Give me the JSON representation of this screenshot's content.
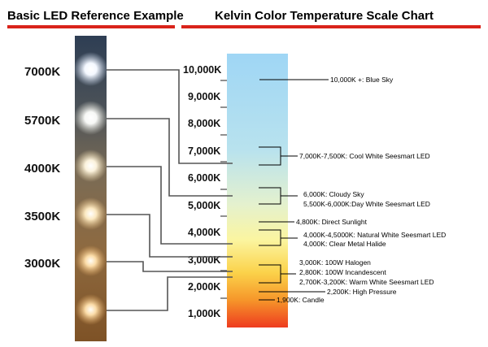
{
  "headings": {
    "left": "Basic LED Reference Example",
    "right": "Kelvin Color Temperature Scale Chart"
  },
  "colors": {
    "accent_rule": "#d9231a",
    "scale_top": "#9fd6f5",
    "scale_bottom": "#ee3b1f"
  },
  "led_strip": {
    "labels": [
      "7000K",
      "5700K",
      "4000K",
      "3500K",
      "3000K"
    ]
  },
  "scale": {
    "ticks": [
      "10,000K",
      "9,000K",
      "8,000K",
      "7,000K",
      "6,000K",
      "5,000K",
      "4,000K",
      "3,000K",
      "2,000K",
      "1,000K"
    ]
  },
  "annotations": [
    {
      "text": "10,000K +: Blue Sky"
    },
    {
      "text": "7,000K-7,500K: Cool White Seesmart LED"
    },
    {
      "text": "6,000K: Cloudy Sky"
    },
    {
      "text": "5,500K-6,000K:Day White Seesmart LED"
    },
    {
      "text": "4,800K: Direct Sunlight"
    },
    {
      "text": "4,000K-4,5000K: Natural White Seesmart LED"
    },
    {
      "text": "4,000K: Clear Metal Halide"
    },
    {
      "text": "3,000K: 100W Halogen"
    },
    {
      "text": "2,800K: 100W Incandescent"
    },
    {
      "text": "2,700K-3,200K: Warm White Seesmart LED"
    },
    {
      "text": "2,200K: High Pressure"
    },
    {
      "text": "1,900K: Candle"
    }
  ]
}
